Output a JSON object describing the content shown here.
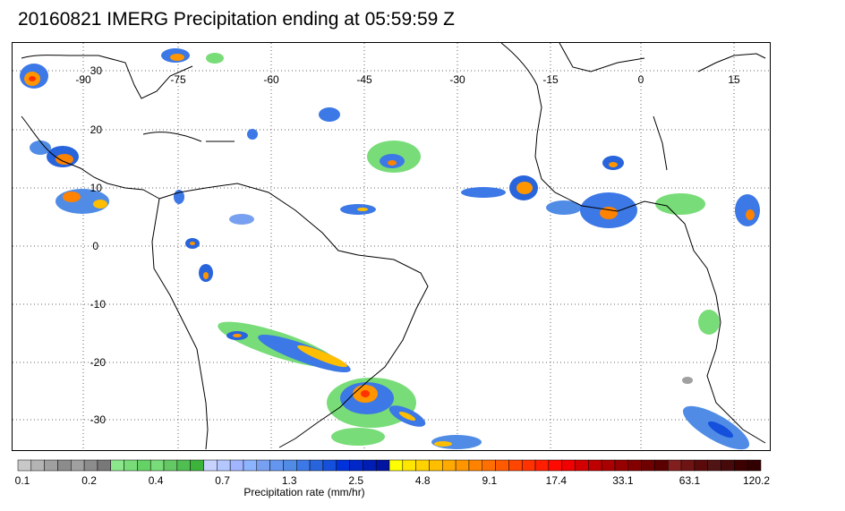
{
  "title": "20160821 IMERG Precipitation ending at 05:59:59 Z",
  "map": {
    "lon_labels": [
      "-90",
      "-75",
      "-60",
      "-45",
      "-30",
      "-15",
      "0",
      "15"
    ],
    "lat_labels": [
      "30",
      "20",
      "10",
      "0",
      "-10",
      "-20",
      "-30"
    ]
  },
  "colorbar": {
    "label": "Precipitation rate (mm/hr)",
    "ticks": [
      "0.1",
      "0.2",
      "0.4",
      "0.7",
      "1.3",
      "2.5",
      "4.8",
      "9.1",
      "17.4",
      "33.1",
      "63.1",
      "120.2"
    ],
    "colors": [
      "#c8c8c8",
      "#b4b4b4",
      "#a0a0a0",
      "#8c8c8c",
      "#a0a0a0",
      "#8c8c8c",
      "#787878",
      "#8ce68c",
      "#78dc78",
      "#64d264",
      "#78dc78",
      "#64c864",
      "#50be50",
      "#3cb43c",
      "#c8d2ff",
      "#b4c8ff",
      "#a0b4ff",
      "#8cb4ff",
      "#78a0f0",
      "#6496f0",
      "#508ce6",
      "#3c78e6",
      "#2864dc",
      "#1450dc",
      "#0032dc",
      "#0028c8",
      "#001eb4",
      "#0014a0",
      "#ffff00",
      "#ffe600",
      "#ffd200",
      "#ffbe00",
      "#ffaa00",
      "#ff9600",
      "#ff8200",
      "#ff6e00",
      "#ff5a00",
      "#ff4600",
      "#ff3200",
      "#ff1e00",
      "#ff0a00",
      "#f00000",
      "#d20000",
      "#be0000",
      "#aa0000",
      "#960000",
      "#820000",
      "#6e0000",
      "#5a0000",
      "#821e1e",
      "#6e1414",
      "#5a0a0a",
      "#501414",
      "#460a0a",
      "#3c0000",
      "#320000"
    ]
  }
}
